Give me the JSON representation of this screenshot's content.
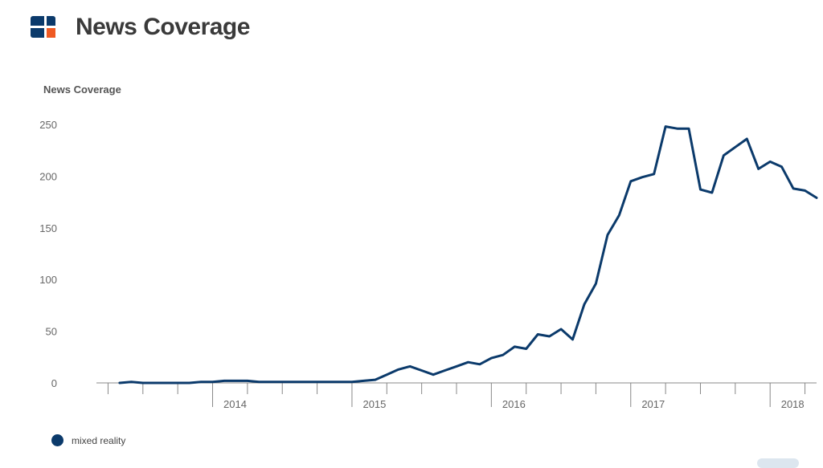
{
  "header": {
    "title": "News Coverage",
    "logo_icon": "brand-logo-icon"
  },
  "colors": {
    "series": "#0b3a6b",
    "logo_dark": "#0b3a6b",
    "logo_accent": "#ef5a23",
    "axis": "#888888",
    "tick_text": "#666666",
    "ylabel_text": "#555555"
  },
  "chart_data": {
    "type": "line",
    "ylabel": "News Coverage",
    "ylim": [
      0,
      250
    ],
    "yticks": [
      0,
      50,
      100,
      150,
      200,
      250
    ],
    "xlim": [
      "2013-03",
      "2018-05"
    ],
    "xticks": [
      "2014",
      "2015",
      "2016",
      "2017",
      "2018"
    ],
    "grid": false,
    "legend": "bottom-left",
    "series": [
      {
        "name": "mixed reality",
        "points": [
          [
            "2013-05",
            0
          ],
          [
            "2013-06",
            1
          ],
          [
            "2013-07",
            0
          ],
          [
            "2013-08",
            0
          ],
          [
            "2013-09",
            0
          ],
          [
            "2013-10",
            0
          ],
          [
            "2013-11",
            0
          ],
          [
            "2013-12",
            1
          ],
          [
            "2014-01",
            1
          ],
          [
            "2014-02",
            2
          ],
          [
            "2014-03",
            2
          ],
          [
            "2014-04",
            2
          ],
          [
            "2014-05",
            1
          ],
          [
            "2014-06",
            1
          ],
          [
            "2014-07",
            1
          ],
          [
            "2014-08",
            1
          ],
          [
            "2014-09",
            1
          ],
          [
            "2014-10",
            1
          ],
          [
            "2014-11",
            1
          ],
          [
            "2014-12",
            1
          ],
          [
            "2015-01",
            1
          ],
          [
            "2015-02",
            2
          ],
          [
            "2015-03",
            3
          ],
          [
            "2015-04",
            8
          ],
          [
            "2015-05",
            13
          ],
          [
            "2015-06",
            16
          ],
          [
            "2015-07",
            12
          ],
          [
            "2015-08",
            8
          ],
          [
            "2015-09",
            12
          ],
          [
            "2015-10",
            16
          ],
          [
            "2015-11",
            20
          ],
          [
            "2015-12",
            18
          ],
          [
            "2016-01",
            24
          ],
          [
            "2016-02",
            27
          ],
          [
            "2016-03",
            35
          ],
          [
            "2016-04",
            33
          ],
          [
            "2016-05",
            47
          ],
          [
            "2016-06",
            45
          ],
          [
            "2016-07",
            52
          ],
          [
            "2016-08",
            42
          ],
          [
            "2016-09",
            76
          ],
          [
            "2016-10",
            96
          ],
          [
            "2016-11",
            143
          ],
          [
            "2016-12",
            162
          ],
          [
            "2017-01",
            195
          ],
          [
            "2017-02",
            199
          ],
          [
            "2017-03",
            202
          ],
          [
            "2017-04",
            248
          ],
          [
            "2017-05",
            246
          ],
          [
            "2017-06",
            246
          ],
          [
            "2017-07",
            187
          ],
          [
            "2017-08",
            184
          ],
          [
            "2017-09",
            220
          ],
          [
            "2017-10",
            228
          ],
          [
            "2017-11",
            236
          ],
          [
            "2017-12",
            207
          ],
          [
            "2018-01",
            214
          ],
          [
            "2018-02",
            209
          ],
          [
            "2018-03",
            188
          ],
          [
            "2018-04",
            186
          ],
          [
            "2018-05",
            179
          ]
        ]
      }
    ]
  }
}
